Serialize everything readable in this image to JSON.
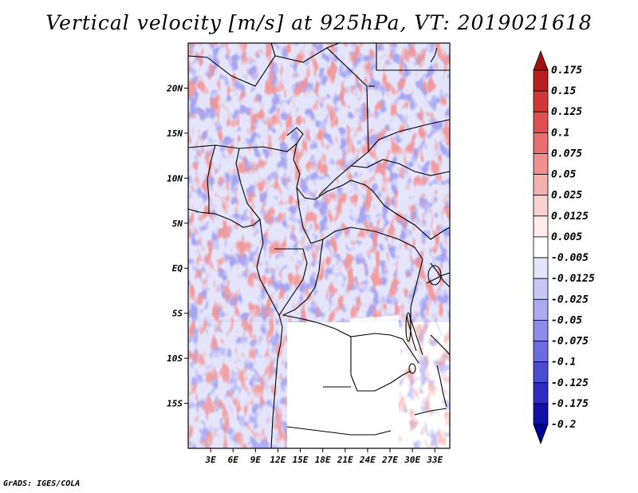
{
  "title": "Vertical velocity [m/s] at 925hPa, VT: 2019021618",
  "footer": "GrADS: IGES/COLA",
  "map": {
    "lon_range": [
      0,
      35
    ],
    "lat_range": [
      -20,
      25
    ],
    "lat_ticks": [
      {
        "value": 20,
        "label": "20N"
      },
      {
        "value": 15,
        "label": "15N"
      },
      {
        "value": 10,
        "label": "10N"
      },
      {
        "value": 5,
        "label": "5N"
      },
      {
        "value": 0,
        "label": "EQ"
      },
      {
        "value": -5,
        "label": "5S"
      },
      {
        "value": -10,
        "label": "10S"
      },
      {
        "value": -15,
        "label": "15S"
      }
    ],
    "lon_ticks": [
      {
        "value": 3,
        "label": "3E"
      },
      {
        "value": 6,
        "label": "6E"
      },
      {
        "value": 9,
        "label": "9E"
      },
      {
        "value": 12,
        "label": "12E"
      },
      {
        "value": 15,
        "label": "15E"
      },
      {
        "value": 18,
        "label": "18E"
      },
      {
        "value": 21,
        "label": "21E"
      },
      {
        "value": 24,
        "label": "24E"
      },
      {
        "value": 27,
        "label": "27E"
      },
      {
        "value": 30,
        "label": "30E"
      },
      {
        "value": 33,
        "label": "33E"
      }
    ]
  },
  "colorbar": {
    "labels": [
      "0.175",
      "0.15",
      "0.125",
      "0.1",
      "0.075",
      "0.05",
      "0.025",
      "0.0125",
      "0.005",
      "-0.005",
      "-0.0125",
      "-0.025",
      "-0.05",
      "-0.075",
      "-0.1",
      "-0.125",
      "-0.175",
      "-0.2"
    ],
    "colors": [
      "#a01010",
      "#b82020",
      "#d03838",
      "#e05050",
      "#e87070",
      "#ef9090",
      "#f5b0b0",
      "#fad0d0",
      "#fdeaea",
      "#ffffff",
      "#e4e4fb",
      "#c8c8f6",
      "#aaaaf0",
      "#8c8ce8",
      "#6c6cdc",
      "#4c4cd0",
      "#2c2cc0",
      "#1010a8",
      "#000090"
    ]
  }
}
